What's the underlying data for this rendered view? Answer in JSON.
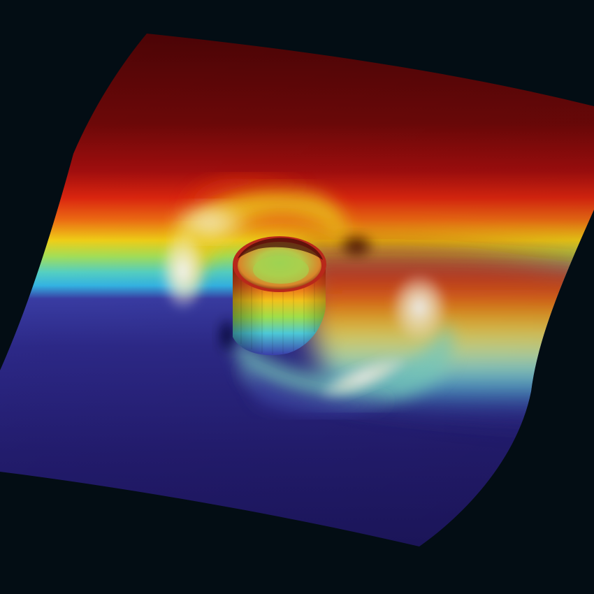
{
  "scene": {
    "background_color": "#030d14",
    "colormap": [
      "#5a0707",
      "#b51111",
      "#f05a13",
      "#f5d318",
      "#8de86e",
      "#5fd7e8",
      "#3a3da8",
      "#2a2585",
      "#221b6e"
    ],
    "highlight_color": "#ffffff"
  }
}
